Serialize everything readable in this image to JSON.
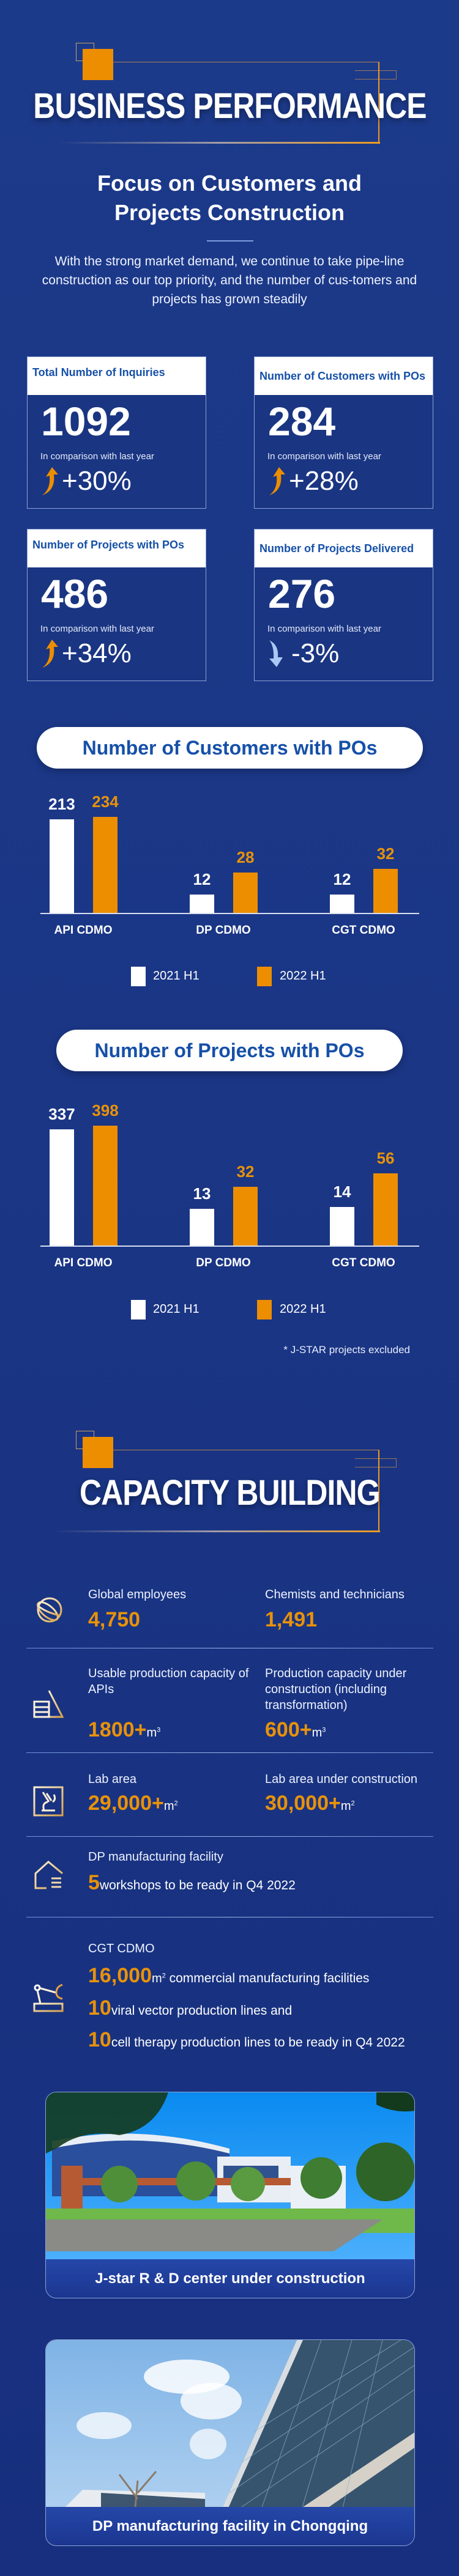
{
  "header": {
    "title": "BUSINESS PERFORMANCE",
    "subtitle_line1": "Focus on Customers and",
    "subtitle_line2": "Projects Construction",
    "intro": "With the  strong market demand, we continue to take pipe-line construction as our top priority, and the number of cus-tomers and projects has grown steadily"
  },
  "kpis": [
    {
      "title": "Total Number of Inquiries",
      "value": "1092",
      "comparison": "In comparison with last year",
      "change": "+30%",
      "trend": "up",
      "trend_icon": "arrow-up-icon"
    },
    {
      "title": "Number of Customers with POs",
      "value": "284",
      "comparison": "In comparison with last year",
      "change": "+28%",
      "trend": "up",
      "trend_icon": "arrow-up-icon"
    },
    {
      "title": "Number of Projects with POs",
      "value": "486",
      "comparison": "In comparison with last year",
      "change": "+34%",
      "trend": "up",
      "trend_icon": "arrow-up-icon"
    },
    {
      "title": "Number of Projects Delivered",
      "value": "276",
      "comparison": "In comparison with last year",
      "change": "-3%",
      "trend": "down",
      "trend_icon": "arrow-down-icon"
    }
  ],
  "colors": {
    "accent": "#ec8e00",
    "background": "#1a3584",
    "heading_blue": "#1650a8",
    "series_2021": "#ffffff",
    "series_2022": "#ec8e00",
    "down_arrow": "#a9c8f5"
  },
  "chart_data": [
    {
      "type": "bar",
      "title": "Number of Customers with POs",
      "categories": [
        "API CDMO",
        "DP CDMO",
        "CGT CDMO"
      ],
      "series": [
        {
          "name": "2021 H1",
          "values": [
            213,
            12,
            12
          ]
        },
        {
          "name": "2022 H1",
          "values": [
            234,
            28,
            32
          ]
        }
      ],
      "legend": "bottom",
      "grid": false
    },
    {
      "type": "bar",
      "title": "Number of Projects with POs",
      "categories": [
        "API CDMO",
        "DP CDMO",
        "CGT CDMO"
      ],
      "series": [
        {
          "name": "2021 H1",
          "values": [
            337,
            13,
            14
          ]
        },
        {
          "name": "2022 H1",
          "values": [
            398,
            32,
            56
          ]
        }
      ],
      "legend": "bottom",
      "grid": false,
      "footnote": "* J-STAR projects excluded"
    }
  ],
  "capacity": {
    "title": "CAPACITY BUILDING",
    "rows": [
      {
        "icon": "globe-icon",
        "items": [
          {
            "label": "Global employees",
            "value": "4,750"
          },
          {
            "label": "Chemists and technicians",
            "value": "1,491"
          }
        ]
      },
      {
        "icon": "production-capacity-icon",
        "items": [
          {
            "label": "Usable production capacity of APIs",
            "value": "1800+",
            "unit": "m",
            "exp": "3"
          },
          {
            "label": "Production capacity under construction (including transformation)",
            "value": "600+",
            "unit": "m",
            "exp": "3"
          }
        ]
      },
      {
        "icon": "microscope-icon",
        "items": [
          {
            "label": "Lab area",
            "value": "29,000+",
            "unit": "m",
            "exp": "2"
          },
          {
            "label": "Lab area under construction",
            "value": "30,000+",
            "unit": "m",
            "exp": "2"
          }
        ]
      },
      {
        "icon": "house-icon",
        "label": "DP manufacturing facility",
        "value": "5",
        "rest": "workshops to be ready in Q4 2022"
      },
      {
        "icon": "robot-arm-icon",
        "label": "CGT CDMO",
        "lines": [
          {
            "value": "16,000",
            "unit": "m",
            "exp": "2",
            "rest": " commercial manufacturing facilities"
          },
          {
            "value": "10",
            "rest": "viral vector production lines and"
          },
          {
            "value": "10",
            "rest": "cell therapy production lines to be ready in Q4 2022"
          }
        ]
      }
    ]
  },
  "photos": [
    {
      "caption": "J-star R & D center under construction"
    },
    {
      "caption": "DP manufacturing facility in Chongqing"
    }
  ]
}
